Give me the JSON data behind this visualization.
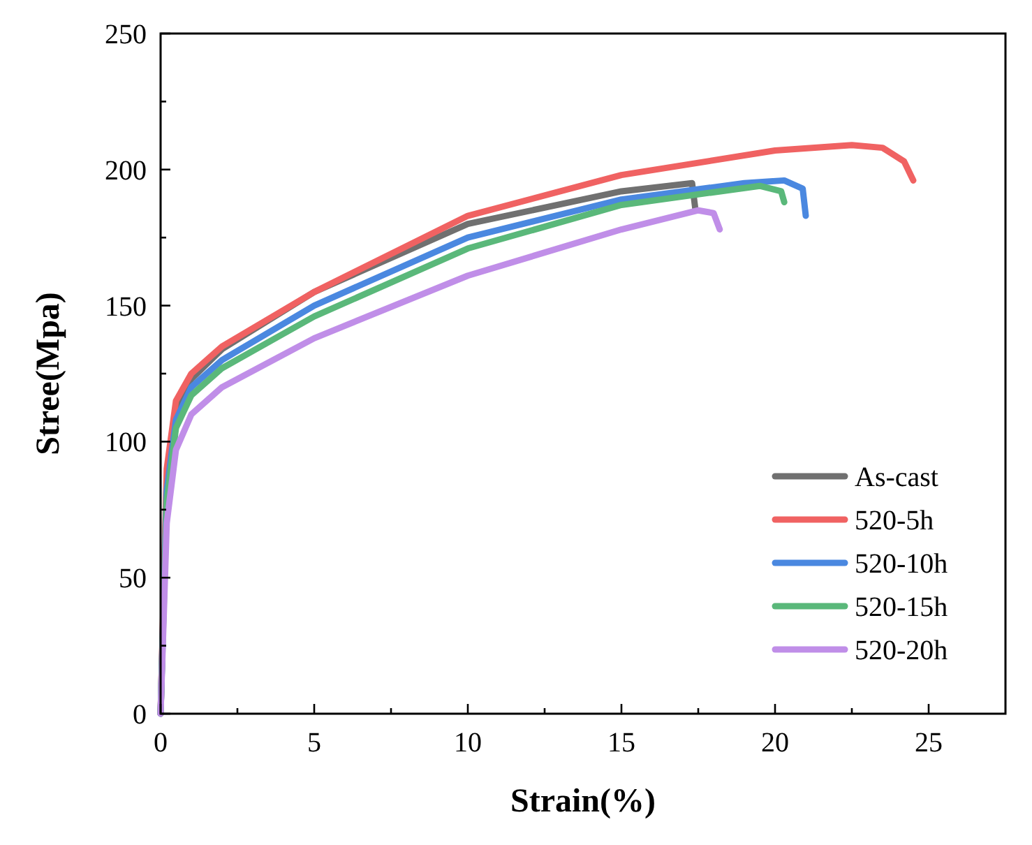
{
  "chart_data": {
    "type": "line",
    "xlabel": "Strain(%)",
    "ylabel": "Stree(Mpa)",
    "xlim": [
      0,
      27.5
    ],
    "ylim": [
      0,
      250
    ],
    "xticks": [
      0,
      {
        "value": 2.5,
        "label": null
      },
      5,
      {
        "value": 7.5,
        "label": null
      },
      10,
      {
        "value": 12.5,
        "label": null
      },
      15,
      {
        "value": 17.5,
        "label": null
      },
      20,
      {
        "value": 22.5,
        "label": null
      },
      25
    ],
    "yticks": [
      0,
      {
        "value": 25,
        "label": null
      },
      50,
      {
        "value": 75,
        "label": null
      },
      100,
      {
        "value": 125,
        "label": null
      },
      150,
      {
        "value": 175,
        "label": null
      },
      200,
      {
        "value": 225,
        "label": null
      },
      250
    ],
    "grid": false,
    "legend": "bottom right",
    "marker": "none",
    "line_style": "solid",
    "series": [
      {
        "name": "As-cast",
        "color": "#707070",
        "x": [
          0,
          0.2,
          0.5,
          1,
          2,
          5,
          10,
          15,
          17.3,
          17.4
        ],
        "values": [
          0,
          85,
          112,
          123,
          134,
          155,
          180,
          192,
          195,
          186
        ]
      },
      {
        "name": "520-5h",
        "color": "#f06262",
        "x": [
          0,
          0.2,
          0.5,
          1,
          2,
          5,
          10,
          15,
          20,
          22.5,
          23.5,
          24.2,
          24.5
        ],
        "values": [
          0,
          90,
          115,
          125,
          135,
          155,
          183,
          198,
          207,
          209,
          208,
          203,
          196
        ]
      },
      {
        "name": "520-10h",
        "color": "#4a88e0",
        "x": [
          0,
          0.2,
          0.5,
          1,
          2,
          5,
          10,
          15,
          19,
          20.3,
          20.9,
          21
        ],
        "values": [
          0,
          82,
          108,
          120,
          130,
          150,
          175,
          189,
          195,
          196,
          193,
          183
        ]
      },
      {
        "name": "520-15h",
        "color": "#5ab87a",
        "x": [
          0,
          0.2,
          0.5,
          1,
          2,
          5,
          10,
          15,
          19.5,
          20.2,
          20.3
        ],
        "values": [
          0,
          78,
          105,
          117,
          127,
          146,
          171,
          187,
          194,
          192,
          188
        ]
      },
      {
        "name": "520-20h",
        "color": "#c08ee8",
        "x": [
          0,
          0.2,
          0.5,
          1,
          2,
          5,
          10,
          15,
          17.5,
          18,
          18.2
        ],
        "values": [
          0,
          70,
          97,
          110,
          120,
          138,
          161,
          178,
          185,
          184,
          178
        ]
      }
    ]
  }
}
